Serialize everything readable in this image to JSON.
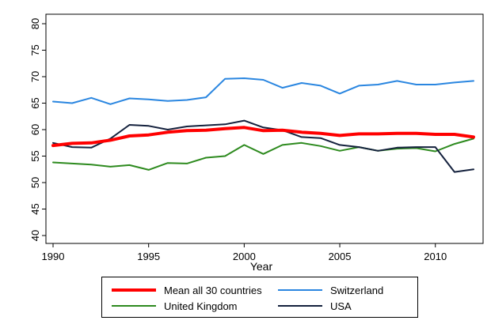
{
  "chart_data": {
    "type": "line",
    "xlabel": "Year",
    "ylabel": "",
    "xlim": [
      1990,
      2012
    ],
    "ylim": [
      40,
      80
    ],
    "xticks": [
      1990,
      1995,
      2000,
      2005,
      2010
    ],
    "yticks": [
      40,
      45,
      50,
      55,
      60,
      65,
      70,
      75,
      80
    ],
    "grid": false,
    "legend_position": "bottom",
    "x": [
      1990,
      1991,
      1992,
      1993,
      1994,
      1995,
      1996,
      1997,
      1998,
      1999,
      2000,
      2001,
      2002,
      2003,
      2004,
      2005,
      2006,
      2007,
      2008,
      2009,
      2010,
      2011,
      2012
    ],
    "series": [
      {
        "name": "Mean all 30 countries",
        "color": "#ff0000",
        "width": 4,
        "values": [
          57.0,
          57.4,
          57.5,
          58.0,
          58.8,
          59.0,
          59.5,
          59.8,
          59.9,
          60.2,
          60.4,
          59.8,
          59.9,
          59.5,
          59.3,
          58.9,
          59.2,
          59.2,
          59.3,
          59.3,
          59.1,
          59.1,
          58.6
        ]
      },
      {
        "name": "Switzerland",
        "color": "#2a86e0",
        "width": 2,
        "values": [
          65.3,
          65.0,
          66.0,
          64.8,
          65.9,
          65.7,
          65.4,
          65.6,
          66.1,
          69.6,
          69.7,
          69.4,
          67.9,
          68.8,
          68.3,
          66.8,
          68.3,
          68.5,
          69.2,
          68.5,
          68.5,
          68.9,
          69.2
        ]
      },
      {
        "name": "United Kingdom",
        "color": "#2d8a1e",
        "width": 2,
        "values": [
          53.8,
          53.6,
          53.4,
          53.0,
          53.3,
          52.4,
          53.7,
          53.6,
          54.7,
          55.0,
          57.1,
          55.4,
          57.1,
          57.5,
          56.9,
          56.0,
          56.7,
          56.0,
          56.4,
          56.5,
          55.9,
          57.3,
          58.3
        ]
      },
      {
        "name": "USA",
        "color": "#14213d",
        "width": 2,
        "values": [
          57.5,
          56.7,
          56.6,
          58.3,
          60.9,
          60.7,
          60.0,
          60.6,
          60.8,
          61.0,
          61.7,
          60.4,
          59.9,
          58.6,
          58.4,
          57.1,
          56.7,
          56.0,
          56.6,
          56.7,
          56.7,
          52.0,
          52.5
        ]
      }
    ]
  }
}
